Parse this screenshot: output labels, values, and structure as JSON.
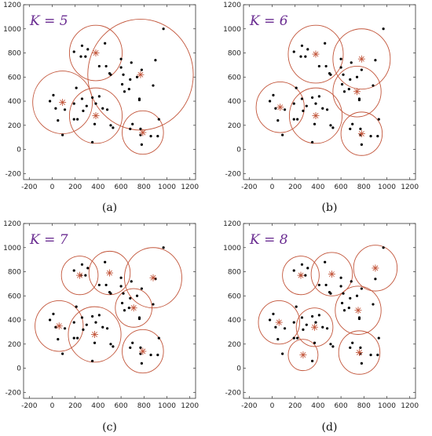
{
  "points": [
    [
      10,
      450
    ],
    [
      -20,
      400
    ],
    [
      30,
      340
    ],
    [
      110,
      330
    ],
    [
      50,
      240
    ],
    [
      90,
      120
    ],
    [
      210,
      510
    ],
    [
      190,
      810
    ],
    [
      250,
      770
    ],
    [
      260,
      860
    ],
    [
      310,
      830
    ],
    [
      290,
      770
    ],
    [
      460,
      880
    ],
    [
      410,
      690
    ],
    [
      470,
      690
    ],
    [
      600,
      750
    ],
    [
      510,
      620
    ],
    [
      600,
      680
    ],
    [
      500,
      630
    ],
    [
      620,
      620
    ],
    [
      610,
      540
    ],
    [
      670,
      500
    ],
    [
      630,
      480
    ],
    [
      780,
      660
    ],
    [
      690,
      720
    ],
    [
      740,
      600
    ],
    [
      680,
      580
    ],
    [
      760,
      410
    ],
    [
      760,
      420
    ],
    [
      900,
      740
    ],
    [
      880,
      530
    ],
    [
      970,
      1000
    ],
    [
      260,
      420
    ],
    [
      190,
      380
    ],
    [
      350,
      430
    ],
    [
      410,
      440
    ],
    [
      380,
      380
    ],
    [
      440,
      340
    ],
    [
      480,
      330
    ],
    [
      300,
      360
    ],
    [
      270,
      320
    ],
    [
      190,
      250
    ],
    [
      220,
      250
    ],
    [
      370,
      210
    ],
    [
      350,
      60
    ],
    [
      530,
      180
    ],
    [
      510,
      200
    ],
    [
      680,
      170
    ],
    [
      700,
      210
    ],
    [
      770,
      170
    ],
    [
      770,
      120
    ],
    [
      780,
      40
    ],
    [
      860,
      110
    ],
    [
      920,
      110
    ],
    [
      930,
      250
    ]
  ],
  "chart_data": [
    {
      "type": "scatter",
      "label": "K = 5",
      "caption": "(a)",
      "xlim": [
        -250,
        1250
      ],
      "ylim": [
        -250,
        1200
      ],
      "xticks": [
        -200,
        0,
        200,
        400,
        600,
        800,
        1000,
        1200
      ],
      "yticks": [
        -200,
        0,
        200,
        400,
        600,
        800,
        1000,
        1200
      ],
      "centroids": [
        {
          "x": 90,
          "y": 390,
          "r": 260
        },
        {
          "x": 380,
          "y": 800,
          "r": 230
        },
        {
          "x": 770,
          "y": 620,
          "r": 460
        },
        {
          "x": 380,
          "y": 280,
          "r": 230
        },
        {
          "x": 790,
          "y": 140,
          "r": 180
        }
      ]
    },
    {
      "type": "scatter",
      "label": "K = 6",
      "caption": "(b)",
      "xlim": [
        -250,
        1250
      ],
      "ylim": [
        -250,
        1200
      ],
      "xticks": [
        -200,
        0,
        200,
        400,
        600,
        800,
        1000,
        1200
      ],
      "yticks": [
        -200,
        0,
        200,
        400,
        600,
        800,
        1000,
        1200
      ],
      "centroids": [
        {
          "x": 70,
          "y": 350,
          "r": 210
        },
        {
          "x": 380,
          "y": 790,
          "r": 240
        },
        {
          "x": 780,
          "y": 750,
          "r": 250
        },
        {
          "x": 380,
          "y": 280,
          "r": 230
        },
        {
          "x": 740,
          "y": 480,
          "r": 210
        },
        {
          "x": 780,
          "y": 130,
          "r": 180
        }
      ]
    },
    {
      "type": "scatter",
      "label": "K = 7",
      "caption": "(c)",
      "xlim": [
        -250,
        1250
      ],
      "ylim": [
        -250,
        1200
      ],
      "xticks": [
        -200,
        0,
        200,
        400,
        600,
        800,
        1000,
        1200
      ],
      "yticks": [
        -200,
        0,
        200,
        400,
        600,
        800,
        1000,
        1200
      ],
      "centroids": [
        {
          "x": 60,
          "y": 350,
          "r": 210
        },
        {
          "x": 240,
          "y": 770,
          "r": 160
        },
        {
          "x": 500,
          "y": 790,
          "r": 180
        },
        {
          "x": 880,
          "y": 750,
          "r": 250
        },
        {
          "x": 370,
          "y": 280,
          "r": 230
        },
        {
          "x": 710,
          "y": 500,
          "r": 160
        },
        {
          "x": 790,
          "y": 140,
          "r": 180
        }
      ]
    },
    {
      "type": "scatter",
      "label": "K = 8",
      "caption": "(d)",
      "xlim": [
        -250,
        1250
      ],
      "ylim": [
        -250,
        1200
      ],
      "xticks": [
        -200,
        0,
        200,
        400,
        600,
        800,
        1000,
        1200
      ],
      "yticks": [
        -200,
        0,
        200,
        400,
        600,
        800,
        1000,
        1200
      ],
      "centroids": [
        {
          "x": 60,
          "y": 380,
          "r": 180
        },
        {
          "x": 250,
          "y": 770,
          "r": 160
        },
        {
          "x": 520,
          "y": 780,
          "r": 180
        },
        {
          "x": 900,
          "y": 830,
          "r": 190
        },
        {
          "x": 370,
          "y": 340,
          "r": 160
        },
        {
          "x": 750,
          "y": 480,
          "r": 200
        },
        {
          "x": 270,
          "y": 110,
          "r": 130
        },
        {
          "x": 760,
          "y": 130,
          "r": 180
        }
      ]
    }
  ],
  "colors": {
    "circle": "#c2553a",
    "centroid": "#c2553a",
    "point": "#000000",
    "axis": "#333333",
    "label": "#6a2c91"
  }
}
